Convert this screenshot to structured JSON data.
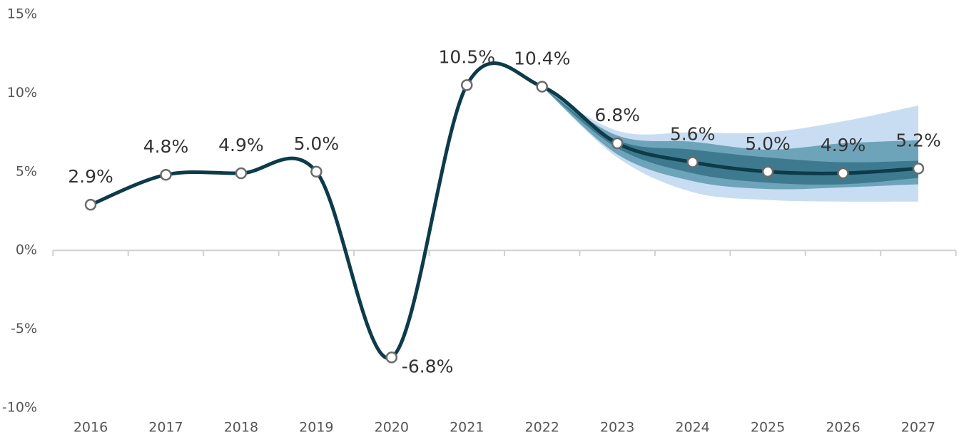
{
  "chart_data": {
    "type": "line",
    "categories": [
      "2016",
      "2017",
      "2018",
      "2019",
      "2020",
      "2021",
      "2022",
      "2023",
      "2024",
      "2025",
      "2026",
      "2027"
    ],
    "series": [
      {
        "color": "#0d3b4a",
        "values": [
          2.9,
          4.8,
          4.9,
          5.0,
          -6.8,
          10.5,
          10.4,
          6.8,
          5.6,
          5.0,
          4.9,
          5.2
        ],
        "value_labels": [
          "2.9%",
          "4.8%",
          "4.9%",
          "5.0%",
          "-6.8%",
          "10.5%",
          "10.4%",
          "6.8%",
          "5.6%",
          "5.0%",
          "4.9%",
          "5.2%"
        ]
      }
    ],
    "bands": [
      {
        "color": "#c9ddf2",
        "lower": [
          null,
          null,
          null,
          null,
          null,
          null,
          10.4,
          5.9,
          3.7,
          3.2,
          3.1,
          3.1
        ],
        "upper": [
          null,
          null,
          null,
          null,
          null,
          null,
          10.4,
          7.6,
          7.5,
          7.5,
          8.2,
          9.2
        ]
      },
      {
        "color": "#6ea4ba",
        "lower": [
          null,
          null,
          null,
          null,
          null,
          null,
          10.4,
          6.1,
          4.4,
          3.9,
          4.0,
          4.2
        ],
        "upper": [
          null,
          null,
          null,
          null,
          null,
          null,
          10.4,
          7.3,
          6.9,
          6.4,
          6.8,
          7.0
        ]
      },
      {
        "color": "#3e7a8f",
        "lower": [
          null,
          null,
          null,
          null,
          null,
          null,
          10.4,
          6.5,
          4.9,
          4.3,
          4.2,
          4.6
        ],
        "upper": [
          null,
          null,
          null,
          null,
          null,
          null,
          10.4,
          7.0,
          6.4,
          5.9,
          5.6,
          5.7
        ]
      }
    ],
    "ylim": [
      -10,
      15
    ],
    "yticks": [
      {
        "value": 15,
        "label": "15%"
      },
      {
        "value": 10,
        "label": "10%"
      },
      {
        "value": 5,
        "label": "5%"
      },
      {
        "value": 0,
        "label": "0%"
      },
      {
        "value": -5,
        "label": "-5%"
      },
      {
        "value": -10,
        "label": "-10%"
      }
    ]
  }
}
